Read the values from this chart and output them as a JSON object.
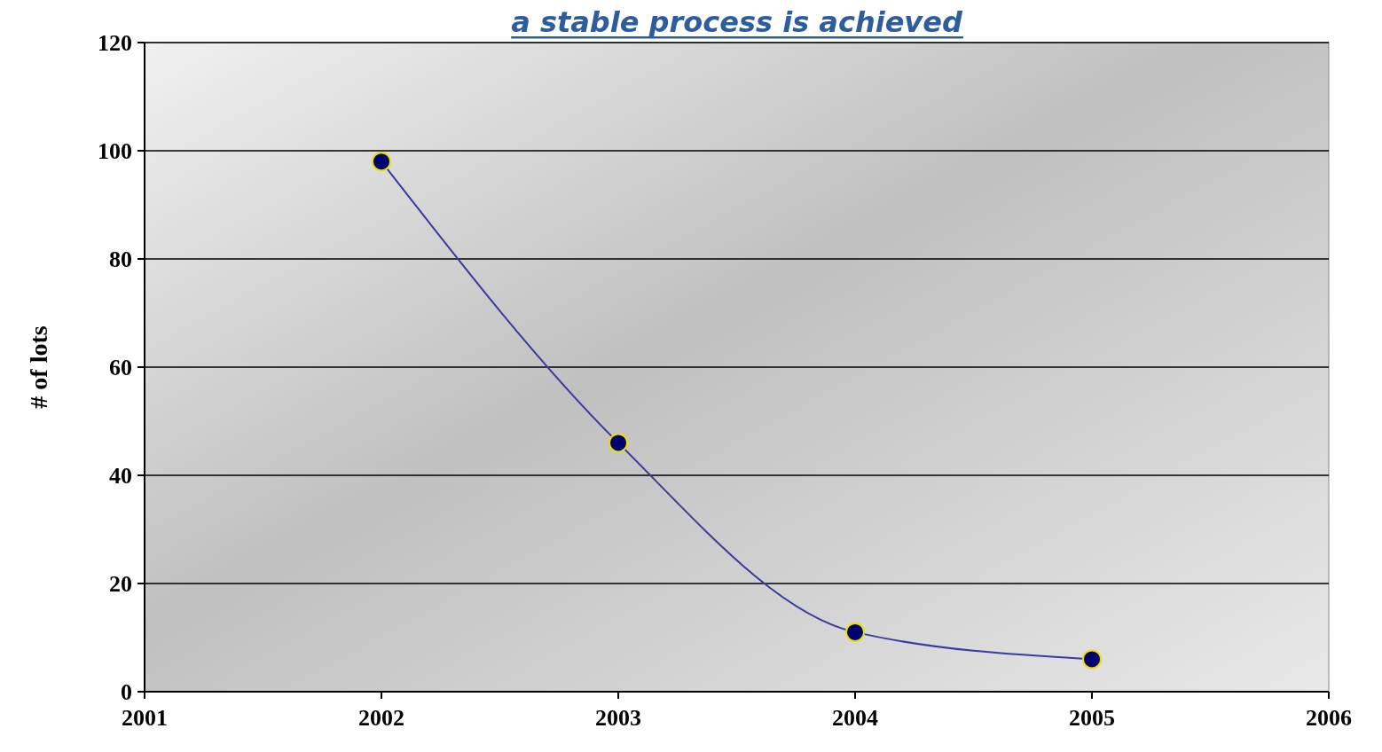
{
  "chart_data": {
    "type": "line",
    "title": "a stable process is achieved",
    "ylabel": "# of lots",
    "x": [
      2002,
      2003,
      2004,
      2005
    ],
    "series": [
      {
        "color": "#3a3aa0",
        "values": [
          98,
          46,
          11,
          6
        ]
      }
    ],
    "xlim": [
      2001,
      2006
    ],
    "xticks": [
      2001,
      2002,
      2003,
      2004,
      2005,
      2006
    ],
    "ylim": [
      0,
      120
    ],
    "yticks": [
      0,
      20,
      40,
      60,
      80,
      100,
      120
    ],
    "grid": "y",
    "marker": "circle",
    "line_style": "solid"
  }
}
